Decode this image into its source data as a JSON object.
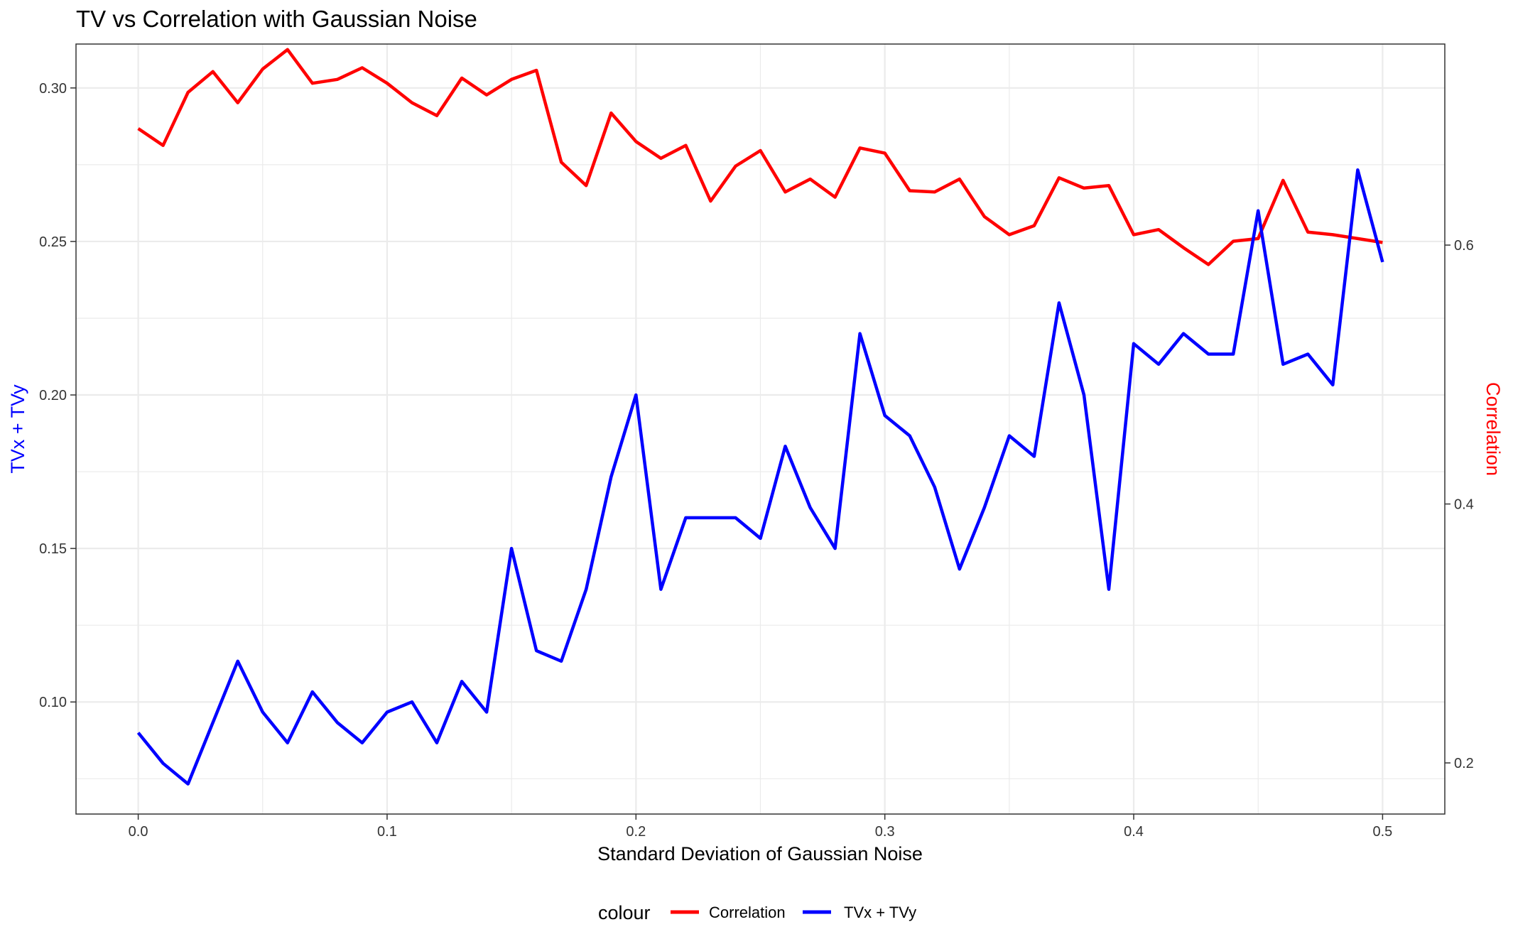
{
  "chart_data": {
    "type": "line",
    "title": "TV vs Correlation with Gaussian Noise",
    "xlabel": "Standard Deviation of Gaussian Noise",
    "ylabel_left": "TVx + TVy",
    "ylabel_right": "Correlation",
    "xlim": [
      -0.025,
      0.525
    ],
    "ylim_left": [
      0.0635,
      0.3143
    ],
    "ylim_right": [
      0.1605,
      0.7553
    ],
    "x_ticks": [
      "0.0",
      "0.1",
      "0.2",
      "0.3",
      "0.4",
      "0.5"
    ],
    "y_left_ticks": [
      "0.10",
      "0.15",
      "0.20",
      "0.25",
      "0.30"
    ],
    "y_right_ticks": [
      "0.2",
      "0.4",
      "0.6"
    ],
    "grid": true,
    "legend_title": "colour",
    "legend_position": "bottom",
    "x": [
      0.0,
      0.01,
      0.02,
      0.03,
      0.04,
      0.05,
      0.06,
      0.07,
      0.08,
      0.09,
      0.1,
      0.11,
      0.12,
      0.13,
      0.14,
      0.15,
      0.16,
      0.17,
      0.18,
      0.19,
      0.2,
      0.21,
      0.22,
      0.23,
      0.24,
      0.25,
      0.26,
      0.27,
      0.28,
      0.29,
      0.3,
      0.31,
      0.32,
      0.33,
      0.34,
      0.35,
      0.36,
      0.37,
      0.38,
      0.39,
      0.4,
      0.41,
      0.42,
      0.43,
      0.44,
      0.45,
      0.46,
      0.47,
      0.48,
      0.49,
      0.5
    ],
    "series": [
      {
        "name": "Correlation",
        "axis": "right",
        "color": "#ff0000",
        "values": [
          0.69,
          0.677,
          0.718,
          0.734,
          0.71,
          0.736,
          0.751,
          0.725,
          0.728,
          0.737,
          0.725,
          0.71,
          0.7,
          0.729,
          0.716,
          0.728,
          0.735,
          0.664,
          0.646,
          0.702,
          0.68,
          0.667,
          0.677,
          0.634,
          0.661,
          0.673,
          0.641,
          0.651,
          0.637,
          0.675,
          0.671,
          0.642,
          0.641,
          0.651,
          0.622,
          0.608,
          0.615,
          0.652,
          0.644,
          0.646,
          0.608,
          0.612,
          0.598,
          0.585,
          0.603,
          0.605,
          0.65,
          0.61,
          0.608,
          0.605,
          0.602
        ]
      },
      {
        "name": "TVx + TVy",
        "axis": "left",
        "color": "#0000ff",
        "values": [
          0.09,
          0.08,
          0.0733,
          0.0933,
          0.1133,
          0.0967,
          0.0867,
          0.1033,
          0.0933,
          0.0867,
          0.0967,
          0.1,
          0.0867,
          0.1067,
          0.0967,
          0.15,
          0.1167,
          0.1133,
          0.1367,
          0.1733,
          0.2,
          0.1367,
          0.16,
          0.16,
          0.16,
          0.1533,
          0.1833,
          0.1633,
          0.15,
          0.22,
          0.1933,
          0.1867,
          0.17,
          0.1433,
          0.1633,
          0.1867,
          0.18,
          0.23,
          0.2,
          0.1367,
          0.2167,
          0.21,
          0.22,
          0.2133,
          0.2133,
          0.26,
          0.21,
          0.2133,
          0.2033,
          0.2733,
          0.2433
        ]
      }
    ]
  }
}
